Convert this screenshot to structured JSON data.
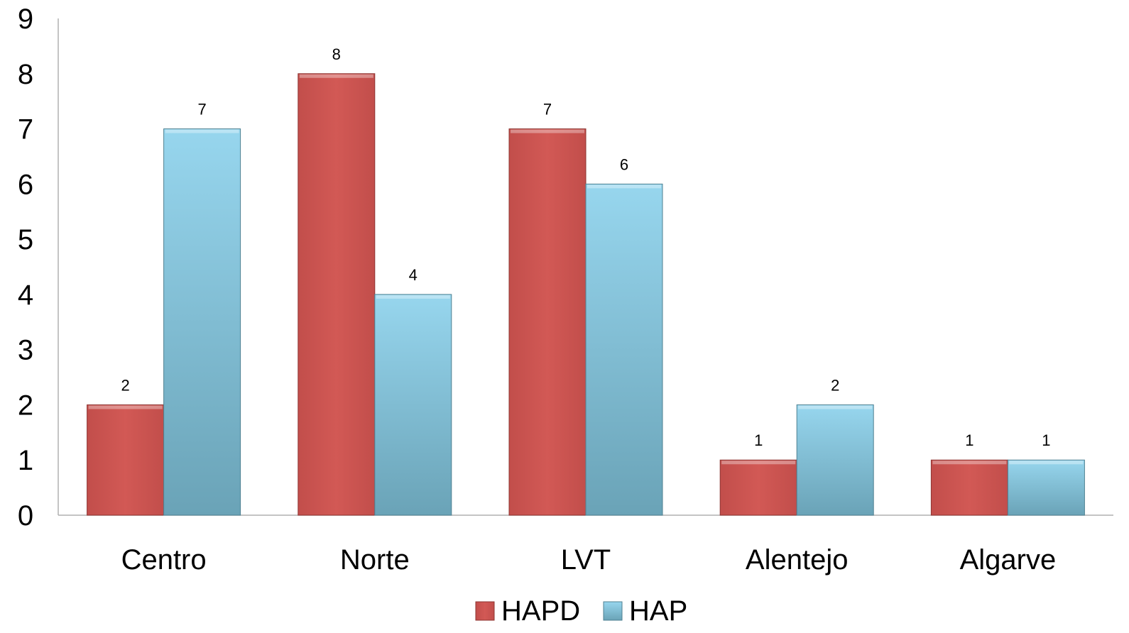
{
  "chart_data": {
    "type": "bar",
    "categories": [
      "Centro",
      "Norte",
      "LVT",
      "Alentejo",
      "Algarve"
    ],
    "series": [
      {
        "name": "HAPD",
        "values": [
          2,
          8,
          7,
          1,
          1
        ],
        "color": "#c0504d"
      },
      {
        "name": "HAP",
        "values": [
          7,
          4,
          6,
          2,
          1
        ],
        "color": "#8ccde6"
      }
    ],
    "ylim": [
      0,
      9
    ],
    "yticks": [
      0,
      1,
      2,
      3,
      4,
      5,
      6,
      7,
      8,
      9
    ],
    "grid": false,
    "legend": "bottom",
    "data_labels": true
  }
}
